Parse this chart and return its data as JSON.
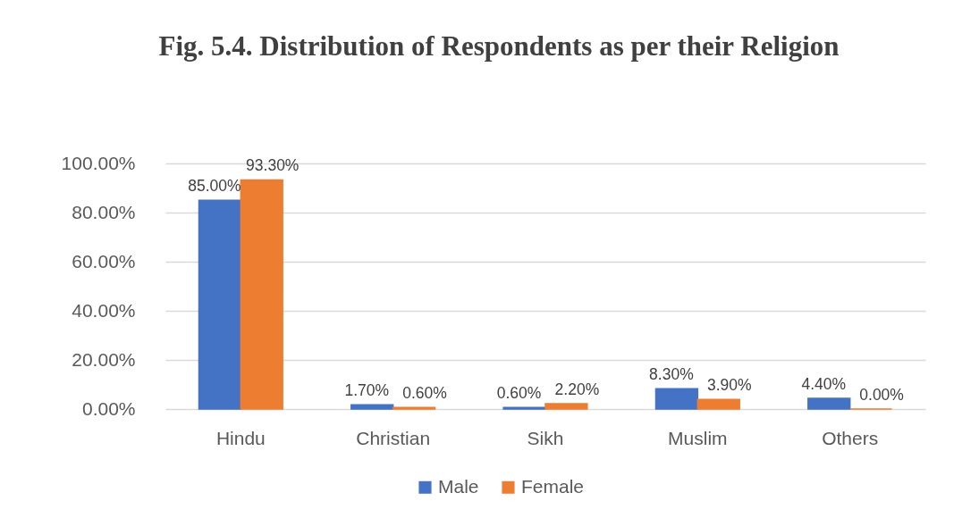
{
  "chart_data": {
    "type": "bar",
    "title": "Fig. 5.4. Distribution of Respondents as per their Religion",
    "categories": [
      "Hindu",
      "Christian",
      "Sikh",
      "Muslim",
      "Others"
    ],
    "series": [
      {
        "name": "Male",
        "color": "#4472c4",
        "values": [
          85,
          1.7,
          0.6,
          8.3,
          4.4
        ],
        "value_labels": [
          "85.00%",
          "1.70%",
          "0.60%",
          "8.30%",
          "4.40%"
        ]
      },
      {
        "name": "Female",
        "color": "#ed7d31",
        "values": [
          93.3,
          0.6,
          2.2,
          3.9,
          0
        ],
        "value_labels": [
          "93.30%",
          "0.60%",
          "2.20%",
          "3.90%",
          "0.00%"
        ]
      }
    ],
    "ylim": [
      0,
      100
    ],
    "yticks": [
      {
        "value": 0,
        "label": "0.00%"
      },
      {
        "value": 20,
        "label": "20.00%"
      },
      {
        "value": 40,
        "label": "40.00%"
      },
      {
        "value": 60,
        "label": "60.00%"
      },
      {
        "value": 80,
        "label": "80.00%"
      },
      {
        "value": 100,
        "label": "100.00%"
      }
    ],
    "grid": "y",
    "legend": "bottom"
  }
}
